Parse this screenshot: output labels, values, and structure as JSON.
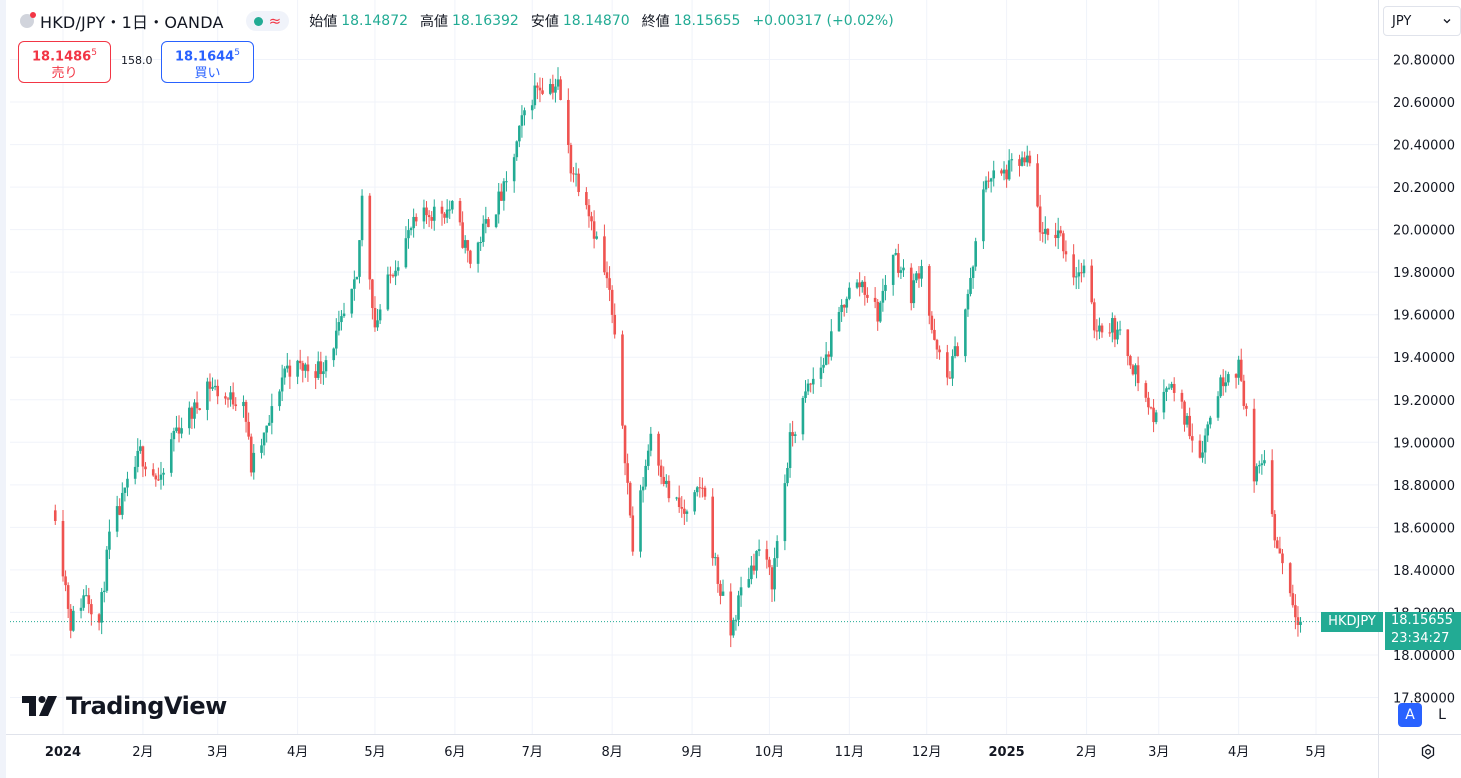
{
  "header": {
    "symbol": "HKD/JPY・1日・OANDA",
    "open_label": "始値",
    "open": "18.14872",
    "high_label": "高値",
    "high": "18.16392",
    "low_label": "安値",
    "low": "18.14870",
    "close_label": "終値",
    "close": "18.15655",
    "change": "+0.00317 (+0.02%)"
  },
  "trade": {
    "sell_price": "18.1486",
    "sell_sup": "5",
    "sell_label": "売り",
    "spread": "158.0",
    "buy_price": "18.1644",
    "buy_sup": "5",
    "buy_label": "買い"
  },
  "currency_button": "JPY",
  "branding": "TradingView",
  "price_tag": {
    "symbol": "HKDJPY",
    "price": "18.15655",
    "countdown": "23:34:27"
  },
  "scale_buttons": {
    "auto": "A",
    "log": "L"
  },
  "colors": {
    "up": "#22ab94",
    "down": "#ef5350",
    "grid": "#f0f3fa",
    "accent": "#2962ff"
  },
  "chart_data": {
    "type": "candlestick",
    "title": "HKD/JPY・1日・OANDA",
    "ylim": [
      17.78,
      20.86
    ],
    "y_ticks": [
      "20.80000",
      "20.60000",
      "20.40000",
      "20.20000",
      "20.00000",
      "19.80000",
      "19.60000",
      "19.40000",
      "19.20000",
      "19.00000",
      "18.80000",
      "18.60000",
      "18.40000",
      "18.20000",
      "18.00000",
      "17.80000"
    ],
    "x_ticks": [
      "2024",
      "2月",
      "3月",
      "4月",
      "5月",
      "6月",
      "7月",
      "8月",
      "9月",
      "10月",
      "11月",
      "12月",
      "2025",
      "2月",
      "3月",
      "4月",
      "5月"
    ],
    "x_tick_bold": [
      "2024",
      "2025"
    ],
    "last_price": 18.15655,
    "trend": [
      [
        "2023-12-29",
        18.68
      ],
      [
        "2024-01-04",
        18.15
      ],
      [
        "2024-01-10",
        18.3
      ],
      [
        "2024-01-15",
        18.15
      ],
      [
        "2024-01-19",
        18.55
      ],
      [
        "2024-01-31",
        18.95
      ],
      [
        "2024-02-08",
        18.8
      ],
      [
        "2024-02-13",
        19.05
      ],
      [
        "2024-02-21",
        19.15
      ],
      [
        "2024-02-26",
        19.28
      ],
      [
        "2024-03-05",
        19.2
      ],
      [
        "2024-03-11",
        19.22
      ],
      [
        "2024-03-14",
        18.88
      ],
      [
        "2024-03-20",
        19.05
      ],
      [
        "2024-03-27",
        19.35
      ],
      [
        "2024-04-10",
        19.35
      ],
      [
        "2024-04-17",
        19.52
      ],
      [
        "2024-04-24",
        19.75
      ],
      [
        "2024-04-26",
        20.15
      ],
      [
        "2024-05-01",
        19.55
      ],
      [
        "2024-05-08",
        19.82
      ],
      [
        "2024-05-15",
        20.0
      ],
      [
        "2024-05-22",
        20.08
      ],
      [
        "2024-05-31",
        20.1
      ],
      [
        "2024-06-07",
        19.85
      ],
      [
        "2024-06-14",
        20.05
      ],
      [
        "2024-06-21",
        20.2
      ],
      [
        "2024-06-28",
        20.55
      ],
      [
        "2024-07-03",
        20.68
      ],
      [
        "2024-07-11",
        20.68
      ],
      [
        "2024-07-16",
        20.3
      ],
      [
        "2024-07-22",
        20.15
      ],
      [
        "2024-07-31",
        19.7
      ],
      [
        "2024-08-05",
        19.1
      ],
      [
        "2024-08-09",
        18.5
      ],
      [
        "2024-08-16",
        19.05
      ],
      [
        "2024-08-23",
        18.75
      ],
      [
        "2024-08-30",
        18.65
      ],
      [
        "2024-09-05",
        18.8
      ],
      [
        "2024-09-11",
        18.35
      ],
      [
        "2024-09-16",
        18.1
      ],
      [
        "2024-09-20",
        18.3
      ],
      [
        "2024-09-27",
        18.5
      ],
      [
        "2024-10-02",
        18.35
      ],
      [
        "2024-10-09",
        19.0
      ],
      [
        "2024-10-16",
        19.25
      ],
      [
        "2024-10-23",
        19.4
      ],
      [
        "2024-10-31",
        19.7
      ],
      [
        "2024-11-06",
        19.75
      ],
      [
        "2024-11-12",
        19.6
      ],
      [
        "2024-11-18",
        19.9
      ],
      [
        "2024-11-25",
        19.7
      ],
      [
        "2024-11-29",
        19.85
      ],
      [
        "2024-12-04",
        19.45
      ],
      [
        "2024-12-09",
        19.3
      ],
      [
        "2024-12-13",
        19.45
      ],
      [
        "2024-12-18",
        19.75
      ],
      [
        "2024-12-24",
        20.25
      ],
      [
        "2024-12-30",
        20.25
      ],
      [
        "2025-01-06",
        20.32
      ],
      [
        "2025-01-10",
        20.3
      ],
      [
        "2025-01-15",
        19.95
      ],
      [
        "2025-01-21",
        20.0
      ],
      [
        "2025-01-27",
        19.8
      ],
      [
        "2025-01-31",
        19.8
      ],
      [
        "2025-02-04",
        19.55
      ],
      [
        "2025-02-11",
        19.55
      ],
      [
        "2025-02-18",
        19.4
      ],
      [
        "2025-02-24",
        19.2
      ],
      [
        "2025-02-28",
        19.1
      ],
      [
        "2025-03-04",
        19.3
      ],
      [
        "2025-03-10",
        19.15
      ],
      [
        "2025-03-17",
        18.95
      ],
      [
        "2025-03-24",
        19.25
      ],
      [
        "2025-03-28",
        19.35
      ],
      [
        "2025-04-01",
        19.35
      ],
      [
        "2025-04-04",
        19.15
      ],
      [
        "2025-04-07",
        18.8
      ],
      [
        "2025-04-11",
        18.95
      ],
      [
        "2025-04-15",
        18.55
      ],
      [
        "2025-04-18",
        18.45
      ],
      [
        "2025-04-22",
        18.25
      ],
      [
        "2025-04-25",
        18.16
      ]
    ]
  }
}
